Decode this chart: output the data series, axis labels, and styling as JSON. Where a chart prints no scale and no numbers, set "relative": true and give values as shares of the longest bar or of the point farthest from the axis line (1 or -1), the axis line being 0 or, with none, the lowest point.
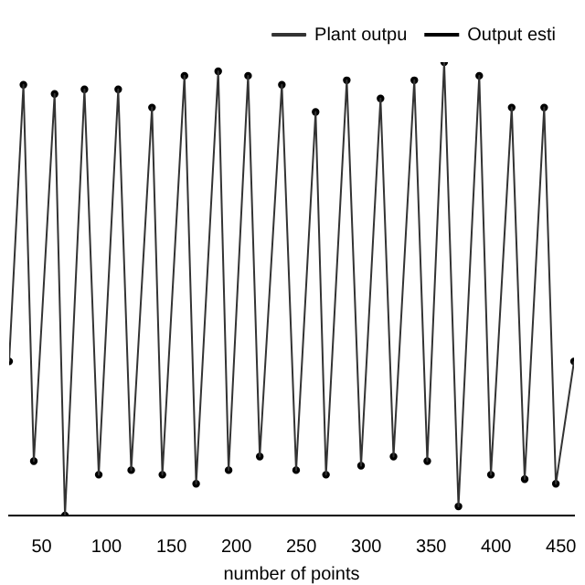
{
  "chart_data": {
    "type": "line",
    "relative": true,
    "xlabel": "number of points",
    "xlim": [
      25,
      460
    ],
    "xticks": [
      50,
      100,
      150,
      200,
      250,
      300,
      350,
      400,
      450
    ],
    "grid": false,
    "legend": "top right",
    "x": [
      25,
      36,
      44,
      60,
      68,
      83,
      94,
      109,
      119,
      135,
      143,
      160,
      169,
      186,
      194,
      209,
      218,
      235,
      246,
      261,
      269,
      285,
      296,
      311,
      321,
      337,
      347,
      360,
      371,
      387,
      396,
      412,
      422,
      437,
      446,
      460
    ],
    "series": [
      {
        "name": "Plant outpu",
        "color": "#333333",
        "line_style": "solid",
        "values": [
          0.34,
          0.95,
          0.12,
          0.93,
          0,
          0.94,
          0.09,
          0.94,
          0.1,
          0.9,
          0.09,
          0.97,
          0.07,
          0.98,
          0.1,
          0.97,
          0.13,
          0.95,
          0.1,
          0.89,
          0.09,
          0.96,
          0.11,
          0.92,
          0.13,
          0.96,
          0.12,
          1,
          0.02,
          0.97,
          0.09,
          0.9,
          0.08,
          0.9,
          0.07,
          0.34
        ]
      },
      {
        "name": "Output esti",
        "type": "scatter",
        "color": "#000000",
        "marker": "circle",
        "values": [
          0.34,
          0.95,
          0.12,
          0.93,
          0,
          0.94,
          0.09,
          0.94,
          0.1,
          0.9,
          0.09,
          0.97,
          0.07,
          0.98,
          0.1,
          0.97,
          0.13,
          0.95,
          0.1,
          0.89,
          0.09,
          0.96,
          0.11,
          0.92,
          0.13,
          0.96,
          0.12,
          1,
          0.02,
          0.97,
          0.09,
          0.9,
          0.08,
          0.9,
          0.07,
          0.34
        ]
      }
    ]
  }
}
